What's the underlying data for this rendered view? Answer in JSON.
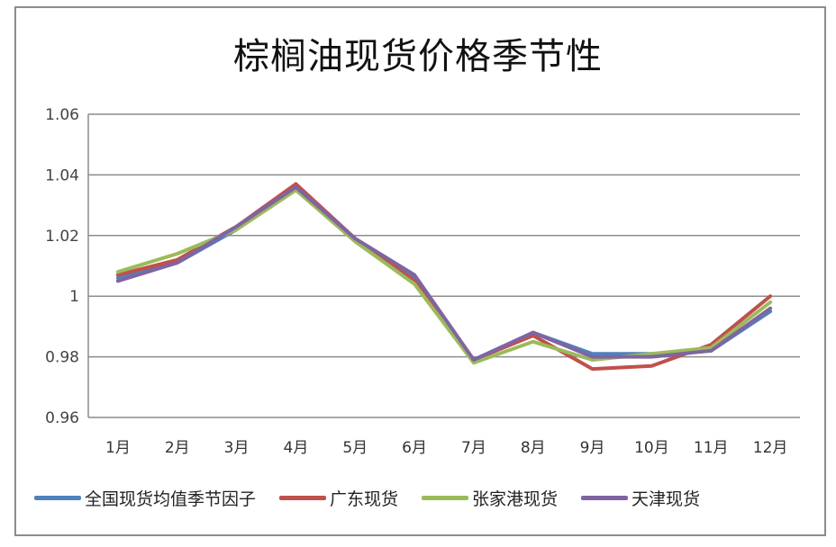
{
  "chart_data": {
    "type": "line",
    "title": "棕榈油现货价格季节性",
    "xlabel": "",
    "ylabel": "",
    "categories": [
      "1月",
      "2月",
      "3月",
      "4月",
      "5月",
      "6月",
      "7月",
      "8月",
      "9月",
      "10月",
      "11月",
      "12月"
    ],
    "ylim": [
      0.96,
      1.06
    ],
    "yticks": [
      0.96,
      0.98,
      1,
      1.02,
      1.04,
      1.06
    ],
    "ytick_labels": [
      "0.96",
      "0.98",
      "1",
      "1.02",
      "1.04",
      "1.06"
    ],
    "grid": true,
    "legend_position": "bottom",
    "series": [
      {
        "name": "全国现货均值季节因子",
        "color": "#4f81bd",
        "values": [
          1.006,
          1.011,
          1.022,
          1.036,
          1.019,
          1.006,
          0.979,
          0.988,
          0.981,
          0.981,
          0.982,
          0.995
        ]
      },
      {
        "name": "广东现货",
        "color": "#c0504d",
        "values": [
          1.007,
          1.012,
          1.023,
          1.037,
          1.019,
          1.005,
          0.979,
          0.987,
          0.976,
          0.977,
          0.984,
          1.0
        ]
      },
      {
        "name": "张家港现货",
        "color": "#9bbb59",
        "values": [
          1.008,
          1.014,
          1.022,
          1.035,
          1.018,
          1.004,
          0.978,
          0.985,
          0.979,
          0.981,
          0.983,
          0.998
        ]
      },
      {
        "name": "天津现货",
        "color": "#8064a2",
        "values": [
          1.005,
          1.011,
          1.023,
          1.036,
          1.019,
          1.007,
          0.979,
          0.988,
          0.98,
          0.98,
          0.982,
          0.996
        ]
      }
    ]
  },
  "title": "棕榈油现货价格季节性",
  "legend": [
    {
      "label": "全国现货均值季节因子",
      "color": "#4f81bd"
    },
    {
      "label": "广东现货",
      "color": "#c0504d"
    },
    {
      "label": "张家港现货",
      "color": "#9bbb59"
    },
    {
      "label": "天津现货",
      "color": "#8064a2"
    }
  ]
}
